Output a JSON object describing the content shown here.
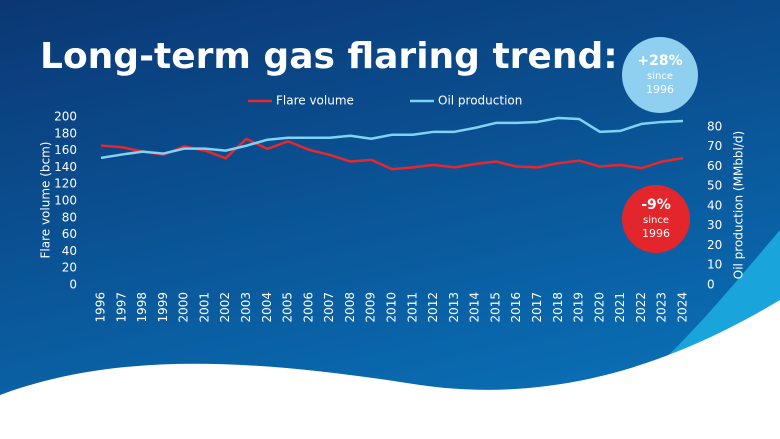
{
  "chart_data": {
    "type": "line",
    "title": "Long-term gas flaring trend:",
    "categories": [
      "1996",
      "1997",
      "1998",
      "1999",
      "2000",
      "2001",
      "2002",
      "2003",
      "2004",
      "2005",
      "2006",
      "2007",
      "2008",
      "2009",
      "2010",
      "2011",
      "2012",
      "2013",
      "2014",
      "2015",
      "2016",
      "2017",
      "2018",
      "2019",
      "2020",
      "2021",
      "2022",
      "2023",
      "2024"
    ],
    "series": [
      {
        "name": "Flare volume",
        "color": "#e8262b",
        "axis": "y",
        "values": [
          166,
          164,
          159,
          155,
          165,
          160,
          151,
          174,
          162,
          171,
          161,
          155,
          147,
          149,
          138,
          140,
          143,
          140,
          144,
          147,
          141,
          140,
          145,
          148,
          141,
          143,
          139,
          147,
          151
        ]
      },
      {
        "name": "Oil production",
        "color": "#7fd3f5",
        "axis": "y2",
        "values": [
          64.3,
          66,
          67.5,
          66.5,
          69,
          69,
          68,
          70.5,
          73.5,
          74.5,
          74.5,
          74.5,
          75.5,
          74,
          76,
          76,
          77.5,
          77.5,
          79.5,
          82,
          82,
          82.5,
          84.5,
          84,
          77.5,
          78,
          81.5,
          82.5,
          83
        ]
      }
    ],
    "ylabel": "Flare volume (bcm)",
    "y2label": "Oil production (MMbbl/d)",
    "ylim": [
      0,
      200
    ],
    "yticks": [
      0,
      20,
      40,
      60,
      80,
      100,
      120,
      140,
      160,
      180,
      200
    ],
    "y2lim": [
      0,
      85
    ],
    "y2ticks": [
      0,
      10,
      20,
      30,
      40,
      50,
      60,
      70,
      80
    ],
    "legend": "top",
    "annotations": [
      {
        "text": "+28%",
        "line2": "since",
        "line3": "1996",
        "color": "#8fd0f0"
      },
      {
        "text": "-9%",
        "line2": "since",
        "line3": "1996",
        "color": "#e3262b"
      }
    ]
  }
}
